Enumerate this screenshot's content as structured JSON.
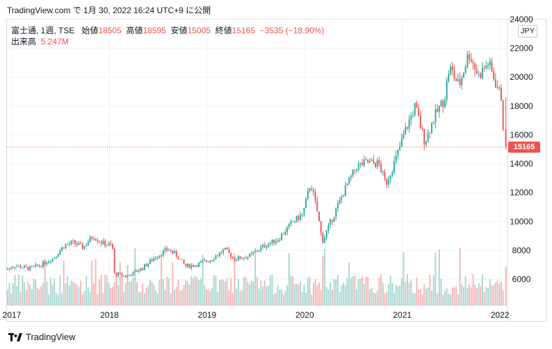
{
  "caption": "TradingView.com で 1月 30, 2022 16:24 UTC+9 に公開",
  "legend": {
    "symbol": "富士通, 1週, TSE",
    "open_label": "始値",
    "open": "18505",
    "high_label": "高値",
    "high": "18595",
    "low_label": "安値",
    "low": "15005",
    "close_label": "終値",
    "close": "15165",
    "change": "−3535 (−18.90%)",
    "volume_label": "出来高",
    "volume": "5.247M"
  },
  "currency": "JPY",
  "last_price_label": "15165",
  "footer": {
    "brand": "TradingView"
  },
  "colors": {
    "up": "#26a69a",
    "down": "#ef5350",
    "up_vol": "#a6d6d2",
    "down_vol": "#f5b4b3",
    "last_line": "#ef5350"
  },
  "chart_data": {
    "type": "candlestick",
    "title": "富士通, 1週, TSE",
    "interval": "1週",
    "ylim": [
      4200,
      24000
    ],
    "y_ticks": [
      6000,
      8000,
      10000,
      12000,
      14000,
      16000,
      18000,
      20000,
      22000,
      24000
    ],
    "x_ticks": [
      "2017",
      "2018",
      "2019",
      "2020",
      "2021",
      "2022"
    ],
    "x_range": [
      2016.95,
      2022.07
    ],
    "last_price": 15165,
    "price_path": [
      [
        2016.95,
        6650
      ],
      [
        2017.05,
        6950
      ],
      [
        2017.2,
        6750
      ],
      [
        2017.3,
        6950
      ],
      [
        2017.45,
        7500
      ],
      [
        2017.55,
        8300
      ],
      [
        2017.65,
        8550
      ],
      [
        2017.75,
        8200
      ],
      [
        2017.85,
        9000
      ],
      [
        2017.95,
        8500
      ],
      [
        2018.05,
        8300
      ],
      [
        2018.06,
        6400
      ],
      [
        2018.2,
        6200
      ],
      [
        2018.35,
        6750
      ],
      [
        2018.5,
        7600
      ],
      [
        2018.62,
        8100
      ],
      [
        2018.7,
        7700
      ],
      [
        2018.8,
        6900
      ],
      [
        2018.9,
        7000
      ],
      [
        2019.05,
        7350
      ],
      [
        2019.2,
        8050
      ],
      [
        2019.3,
        7400
      ],
      [
        2019.45,
        7600
      ],
      [
        2019.6,
        8300
      ],
      [
        2019.75,
        8800
      ],
      [
        2019.9,
        10000
      ],
      [
        2020.0,
        10500
      ],
      [
        2020.08,
        12700
      ],
      [
        2020.15,
        10600
      ],
      [
        2020.2,
        8600
      ],
      [
        2020.3,
        10200
      ],
      [
        2020.45,
        12500
      ],
      [
        2020.55,
        13800
      ],
      [
        2020.65,
        14100
      ],
      [
        2020.78,
        14000
      ],
      [
        2020.85,
        12600
      ],
      [
        2020.95,
        14300
      ],
      [
        2021.05,
        16300
      ],
      [
        2021.15,
        18000
      ],
      [
        2021.25,
        15500
      ],
      [
        2021.35,
        17300
      ],
      [
        2021.45,
        18500
      ],
      [
        2021.5,
        20700
      ],
      [
        2021.6,
        19400
      ],
      [
        2021.7,
        21700
      ],
      [
        2021.8,
        20100
      ],
      [
        2021.9,
        21000
      ],
      [
        2021.98,
        19500
      ],
      [
        2022.04,
        18500
      ],
      [
        2022.06,
        15165
      ]
    ]
  }
}
